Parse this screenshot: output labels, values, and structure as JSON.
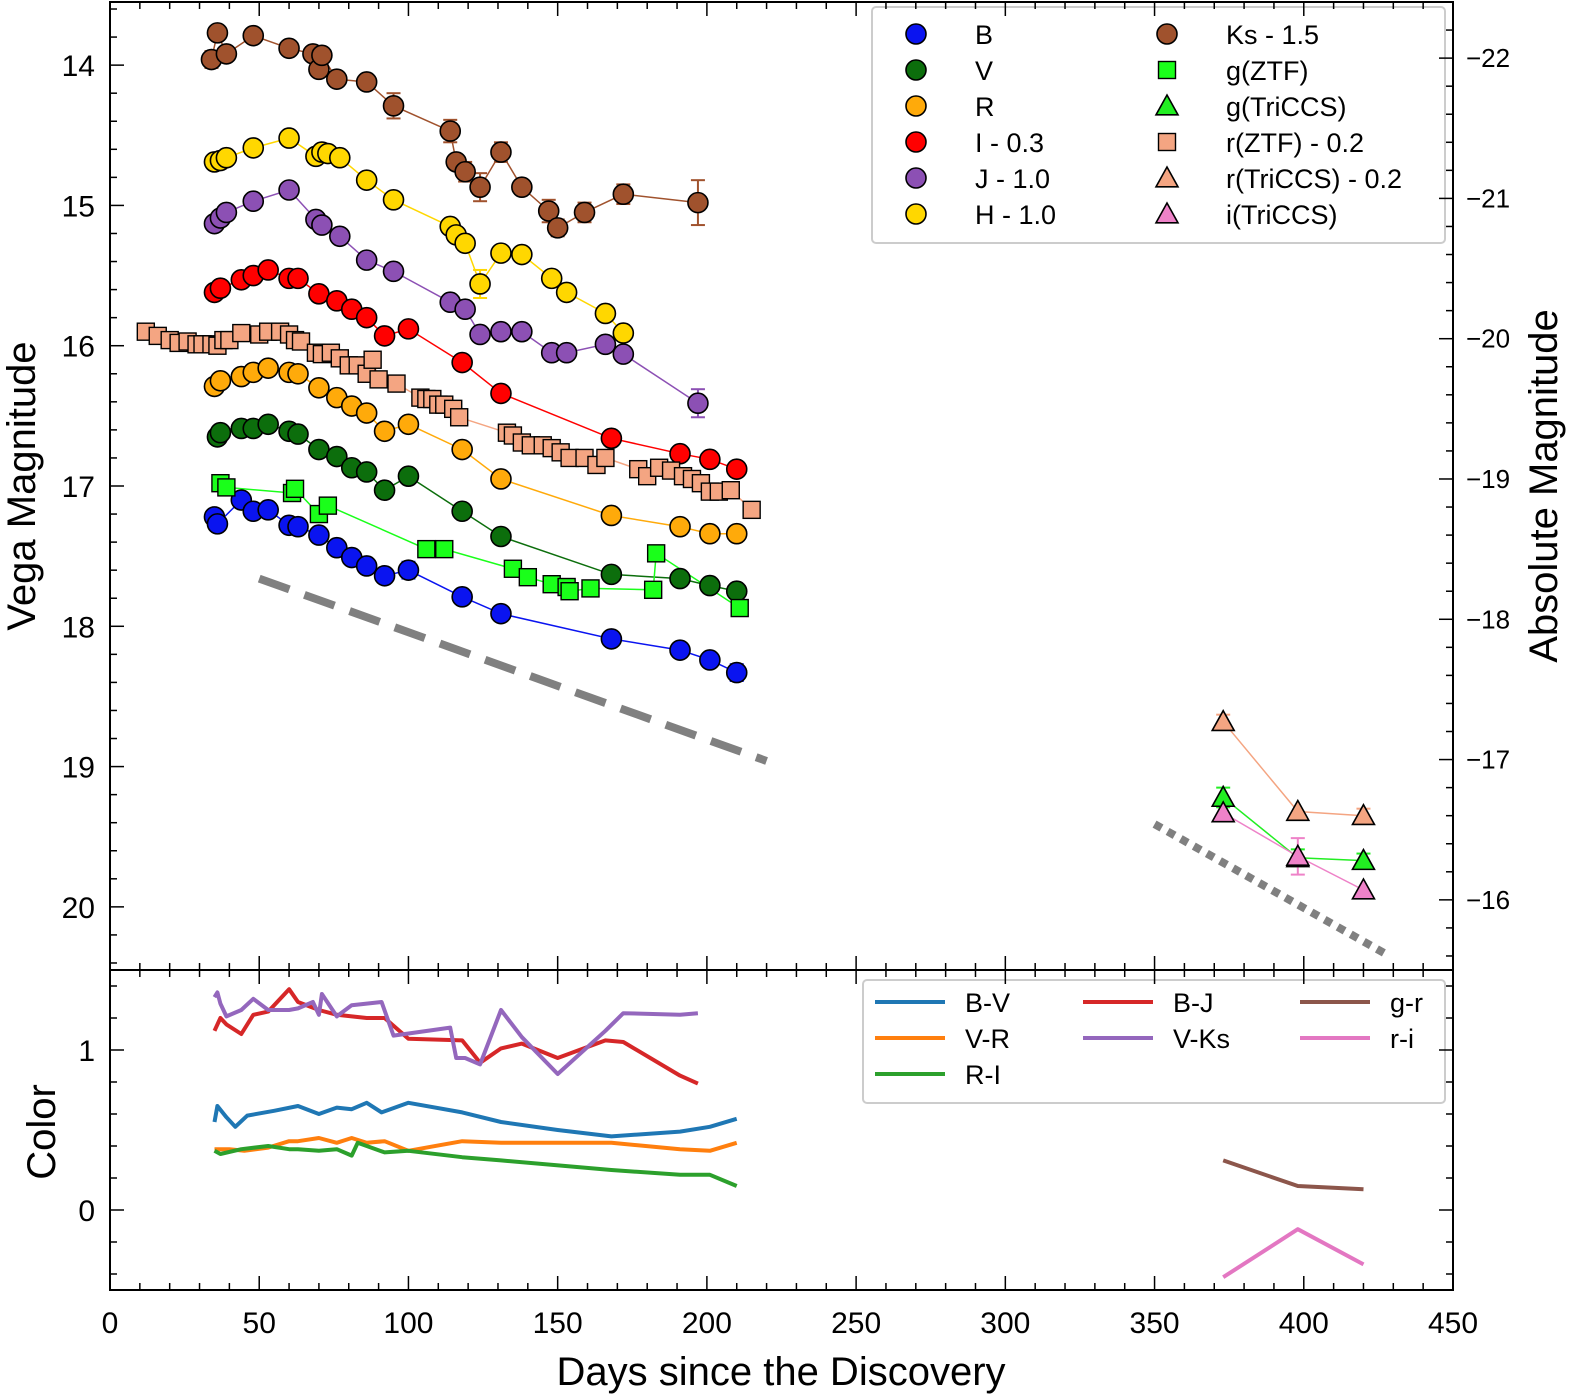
{
  "chart_data": {
    "type": "scatter",
    "xlabel": "Days since the Discovery",
    "xlim": [
      0,
      450
    ],
    "xticks": [
      0,
      50,
      100,
      150,
      200,
      250,
      300,
      350,
      400,
      450
    ],
    "top_panel": {
      "ylabel": "Vega Magnitude",
      "ylabel_right": "Absolute Magnitude",
      "ylim": [
        20.45,
        13.55
      ],
      "yticks": [
        14,
        15,
        16,
        17,
        18,
        19,
        20
      ],
      "yticks_right": [
        -22,
        -21,
        -20,
        -19,
        -18,
        -17,
        -16
      ],
      "abs_offset": 35.95,
      "series": [
        {
          "name": "B",
          "label": "B",
          "marker": "circle",
          "color": "#0a14f0",
          "x": [
            35,
            36,
            44,
            48,
            53,
            60,
            63,
            70,
            76,
            81,
            86,
            92,
            100,
            118,
            131,
            168,
            191,
            201,
            210
          ],
          "y": [
            17.22,
            17.27,
            17.1,
            17.18,
            17.17,
            17.28,
            17.29,
            17.35,
            17.44,
            17.51,
            17.57,
            17.64,
            17.6,
            17.79,
            17.91,
            18.09,
            18.17,
            18.24,
            18.33
          ]
        },
        {
          "name": "V",
          "label": "V",
          "marker": "circle",
          "color": "#0c6e0c",
          "x": [
            36,
            37,
            44,
            48,
            53,
            60,
            63,
            70,
            76,
            81,
            86,
            92,
            100,
            118,
            131,
            168,
            191,
            201,
            210
          ],
          "y": [
            16.65,
            16.62,
            16.59,
            16.59,
            16.56,
            16.61,
            16.63,
            16.74,
            16.79,
            16.87,
            16.9,
            17.03,
            16.93,
            17.18,
            17.36,
            17.63,
            17.66,
            17.71,
            17.75
          ]
        },
        {
          "name": "R",
          "label": "R",
          "marker": "circle",
          "color": "#ffaa0a",
          "x": [
            35,
            37,
            44,
            48,
            53,
            60,
            63,
            70,
            76,
            81,
            86,
            92,
            100,
            118,
            131,
            168,
            191,
            201,
            210
          ],
          "y": [
            16.29,
            16.25,
            16.22,
            16.19,
            16.16,
            16.19,
            16.2,
            16.3,
            16.37,
            16.43,
            16.48,
            16.61,
            16.56,
            16.74,
            16.95,
            17.21,
            17.29,
            17.34,
            17.34
          ]
        },
        {
          "name": "I - 0.3",
          "label": "I - 0.3",
          "marker": "circle",
          "color": "#ff0000",
          "x": [
            35,
            37,
            44,
            48,
            53,
            60,
            63,
            70,
            76,
            81,
            86,
            92,
            100,
            118,
            131,
            168,
            191,
            201,
            210
          ],
          "y": [
            15.62,
            15.59,
            15.53,
            15.5,
            15.46,
            15.52,
            15.52,
            15.63,
            15.68,
            15.74,
            15.8,
            15.93,
            15.88,
            16.12,
            16.34,
            16.66,
            16.77,
            16.81,
            16.88
          ]
        },
        {
          "name": "J - 1.0",
          "label": "J - 1.0",
          "marker": "circle",
          "color": "#8c50b4",
          "x": [
            35,
            37,
            39,
            48,
            60,
            69,
            71,
            77,
            86,
            95,
            114,
            119,
            124,
            131,
            138,
            148,
            153,
            166,
            172,
            197
          ],
          "y": [
            15.13,
            15.09,
            15.05,
            14.97,
            14.89,
            15.1,
            15.14,
            15.22,
            15.39,
            15.47,
            15.69,
            15.74,
            15.92,
            15.9,
            15.9,
            16.05,
            16.05,
            15.99,
            16.06,
            16.41
          ]
        },
        {
          "name": "H - 1.0",
          "label": "H - 1.0",
          "marker": "circle",
          "color": "#ffd700",
          "x": [
            35,
            37,
            39,
            48,
            60,
            69,
            71,
            73,
            77,
            86,
            95,
            114,
            116,
            119,
            124,
            131,
            138,
            148,
            153,
            166,
            172
          ],
          "y": [
            14.69,
            14.68,
            14.66,
            14.59,
            14.52,
            14.65,
            14.62,
            14.63,
            14.66,
            14.82,
            14.96,
            15.15,
            15.21,
            15.27,
            15.56,
            15.34,
            15.35,
            15.52,
            15.62,
            15.77,
            15.91
          ]
        },
        {
          "name": "Ks - 1.5",
          "label": "Ks - 1.5",
          "marker": "circle",
          "color": "#a0522d",
          "x": [
            34,
            36,
            39,
            48,
            60,
            68,
            70,
            71,
            76,
            86,
            95,
            114,
            116,
            119,
            124,
            131,
            138,
            147,
            150,
            159,
            172,
            197
          ],
          "y": [
            13.96,
            13.77,
            13.92,
            13.79,
            13.88,
            13.92,
            14.03,
            13.93,
            14.1,
            14.12,
            14.29,
            14.47,
            14.69,
            14.76,
            14.87,
            14.62,
            14.87,
            15.04,
            15.16,
            15.05,
            14.92,
            14.98
          ]
        },
        {
          "name": "g(ZTF)",
          "label": "g(ZTF)",
          "marker": "square",
          "color": "#1aff1a",
          "x": [
            37,
            39,
            61,
            62,
            70,
            73,
            106,
            112,
            135,
            140,
            148,
            153,
            154,
            161,
            182,
            183,
            211
          ],
          "y": [
            16.98,
            17.01,
            17.05,
            17.02,
            17.2,
            17.14,
            17.45,
            17.45,
            17.59,
            17.65,
            17.7,
            17.72,
            17.75,
            17.73,
            17.74,
            17.48,
            17.87
          ]
        },
        {
          "name": "g(TriCCS)",
          "label": "g(TriCCS)",
          "marker": "triangle",
          "color": "#22ee22",
          "x": [
            373,
            398,
            420
          ],
          "y": [
            19.22,
            19.65,
            19.67
          ]
        },
        {
          "name": "r(ZTF) - 0.2",
          "label": "r(ZTF) - 0.2",
          "marker": "square",
          "color": "#f4a582",
          "x": [
            12,
            16,
            20,
            23,
            26,
            29,
            31,
            34,
            36,
            38,
            40,
            44,
            50,
            53,
            57,
            60,
            62,
            64,
            69,
            71,
            74,
            77,
            80,
            83,
            86,
            88,
            90,
            96,
            104,
            106,
            108,
            110,
            112,
            115,
            117,
            133,
            135,
            138,
            141,
            145,
            148,
            151,
            154,
            159,
            163,
            166,
            177,
            180,
            184,
            188,
            192,
            195,
            198,
            201,
            204,
            208,
            215
          ],
          "y": [
            15.9,
            15.93,
            15.96,
            15.98,
            15.97,
            15.99,
            15.99,
            15.99,
            16.0,
            15.96,
            15.96,
            15.91,
            15.92,
            15.9,
            15.9,
            15.92,
            15.96,
            15.97,
            16.05,
            16.06,
            16.05,
            16.09,
            16.14,
            16.14,
            16.2,
            16.1,
            16.24,
            16.27,
            16.37,
            16.38,
            16.38,
            16.42,
            16.42,
            16.45,
            16.51,
            16.62,
            16.64,
            16.69,
            16.71,
            16.71,
            16.73,
            16.76,
            16.8,
            16.8,
            16.85,
            16.8,
            16.88,
            16.93,
            16.87,
            16.89,
            16.93,
            16.95,
            16.98,
            17.04,
            17.04,
            17.03,
            17.17
          ]
        },
        {
          "name": "r(TriCCS) - 0.2",
          "label": "r(TriCCS) - 0.2",
          "marker": "triangle",
          "color": "#f4a582",
          "x": [
            373,
            398,
            420
          ],
          "y": [
            18.68,
            19.32,
            19.35
          ]
        },
        {
          "name": "i(TriCCS)",
          "label": "i(TriCCS)",
          "marker": "triangle",
          "color": "#ee82c8",
          "x": [
            373,
            398,
            420
          ],
          "y": [
            19.33,
            19.64,
            19.88
          ]
        }
      ],
      "errorbars": [
        {
          "x": 34,
          "y": 13.96,
          "err": 0.06,
          "color": "#a0522d"
        },
        {
          "x": 95,
          "y": 14.29,
          "err": 0.09,
          "color": "#a0522d"
        },
        {
          "x": 114,
          "y": 14.47,
          "err": 0.08,
          "color": "#a0522d"
        },
        {
          "x": 119,
          "y": 14.76,
          "err": 0.07,
          "color": "#a0522d"
        },
        {
          "x": 124,
          "y": 14.87,
          "err": 0.1,
          "color": "#a0522d"
        },
        {
          "x": 131,
          "y": 14.62,
          "err": 0.07,
          "color": "#a0522d"
        },
        {
          "x": 147,
          "y": 15.04,
          "err": 0.08,
          "color": "#a0522d"
        },
        {
          "x": 150,
          "y": 15.16,
          "err": 0.06,
          "color": "#a0522d"
        },
        {
          "x": 159,
          "y": 15.05,
          "err": 0.07,
          "color": "#a0522d"
        },
        {
          "x": 172,
          "y": 14.92,
          "err": 0.07,
          "color": "#a0522d"
        },
        {
          "x": 197,
          "y": 14.98,
          "err": 0.16,
          "color": "#a0522d"
        },
        {
          "x": 124,
          "y": 15.56,
          "err": 0.1,
          "color": "#ffd700"
        },
        {
          "x": 197,
          "y": 16.41,
          "err": 0.1,
          "color": "#8c50b4"
        },
        {
          "x": 100,
          "y": 17.6,
          "err": 0.06,
          "color": "#0a14f0"
        },
        {
          "x": 210,
          "y": 18.33,
          "err": 0.06,
          "color": "#0a14f0"
        },
        {
          "x": 373,
          "y": 19.22,
          "err": 0.07,
          "color": "#22ee22"
        },
        {
          "x": 398,
          "y": 19.65,
          "err": 0.06,
          "color": "#22ee22"
        },
        {
          "x": 420,
          "y": 19.67,
          "err": 0.05,
          "color": "#22ee22"
        },
        {
          "x": 398,
          "y": 19.64,
          "err": 0.13,
          "color": "#ee82c8"
        },
        {
          "x": 373,
          "y": 18.68,
          "err": 0.05,
          "color": "#f4a582"
        },
        {
          "x": 420,
          "y": 19.35,
          "err": 0.05,
          "color": "#f4a582"
        }
      ],
      "reference_lines": [
        {
          "name": "dashed-decline",
          "x": [
            50,
            220
          ],
          "y": [
            17.66,
            18.96
          ],
          "color": "#808080",
          "style": "dashed"
        },
        {
          "name": "dotted-decline",
          "x": [
            350,
            427
          ],
          "y": [
            19.41,
            20.33
          ],
          "color": "#808080",
          "style": "dotted"
        }
      ],
      "legend_position": "top-right"
    },
    "bottom_panel": {
      "ylabel": "Color",
      "ylim": [
        -0.5,
        1.5
      ],
      "yticks": [
        0,
        1
      ],
      "series": [
        {
          "name": "B-V",
          "color": "#1f77b4",
          "x": [
            35,
            36,
            39,
            42,
            46,
            55,
            63,
            70,
            76,
            81,
            86,
            91,
            100,
            118,
            131,
            150,
            168,
            191,
            201,
            210
          ],
          "y": [
            0.55,
            0.65,
            0.58,
            0.52,
            0.59,
            0.62,
            0.65,
            0.6,
            0.64,
            0.63,
            0.67,
            0.61,
            0.67,
            0.61,
            0.55,
            0.5,
            0.46,
            0.49,
            0.52,
            0.57
          ]
        },
        {
          "name": "V-R",
          "color": "#ff7f0e",
          "x": [
            35,
            40,
            45,
            53,
            60,
            63,
            70,
            76,
            81,
            86,
            92,
            100,
            118,
            131,
            168,
            191,
            201,
            210
          ],
          "y": [
            0.38,
            0.38,
            0.37,
            0.39,
            0.43,
            0.43,
            0.45,
            0.42,
            0.45,
            0.42,
            0.43,
            0.37,
            0.43,
            0.42,
            0.42,
            0.38,
            0.37,
            0.42
          ]
        },
        {
          "name": "R-I",
          "color": "#2ca02c",
          "x": [
            35,
            37,
            44,
            53,
            60,
            63,
            70,
            76,
            81,
            83,
            86,
            92,
            100,
            118,
            131,
            168,
            191,
            201,
            210
          ],
          "y": [
            0.37,
            0.35,
            0.38,
            0.4,
            0.38,
            0.38,
            0.37,
            0.38,
            0.34,
            0.42,
            0.4,
            0.36,
            0.37,
            0.33,
            0.31,
            0.25,
            0.22,
            0.22,
            0.15
          ]
        },
        {
          "name": "B-J",
          "color": "#d62728",
          "x": [
            35,
            37,
            39,
            44,
            48,
            53,
            60,
            63,
            70,
            76,
            86,
            92,
            100,
            118,
            124,
            131,
            138,
            150,
            166,
            172,
            191,
            197
          ],
          "y": [
            1.12,
            1.2,
            1.16,
            1.1,
            1.22,
            1.24,
            1.38,
            1.3,
            1.25,
            1.22,
            1.2,
            1.2,
            1.07,
            1.06,
            0.92,
            1.01,
            1.04,
            0.95,
            1.06,
            1.05,
            0.84,
            0.79
          ]
        },
        {
          "name": "V-Ks",
          "color": "#9467bd",
          "x": [
            35,
            36,
            37,
            39,
            44,
            48,
            53,
            60,
            63,
            68,
            70,
            71,
            76,
            81,
            86,
            91,
            95,
            114,
            116,
            119,
            124,
            131,
            138,
            150,
            166,
            172,
            191,
            197
          ],
          "y": [
            1.33,
            1.36,
            1.29,
            1.21,
            1.25,
            1.32,
            1.25,
            1.25,
            1.26,
            1.3,
            1.22,
            1.35,
            1.21,
            1.28,
            1.29,
            1.3,
            1.09,
            1.14,
            0.95,
            0.95,
            0.91,
            1.25,
            1.08,
            0.85,
            1.12,
            1.23,
            1.22,
            1.23
          ]
        },
        {
          "name": "g-r",
          "color": "#8c564b",
          "x": [
            373,
            398,
            420
          ],
          "y": [
            0.31,
            0.15,
            0.13
          ]
        },
        {
          "name": "r-i",
          "color": "#e377c2",
          "x": [
            373,
            398,
            420
          ],
          "y": [
            -0.42,
            -0.12,
            -0.34
          ]
        }
      ],
      "legend_position": "top-right"
    }
  }
}
